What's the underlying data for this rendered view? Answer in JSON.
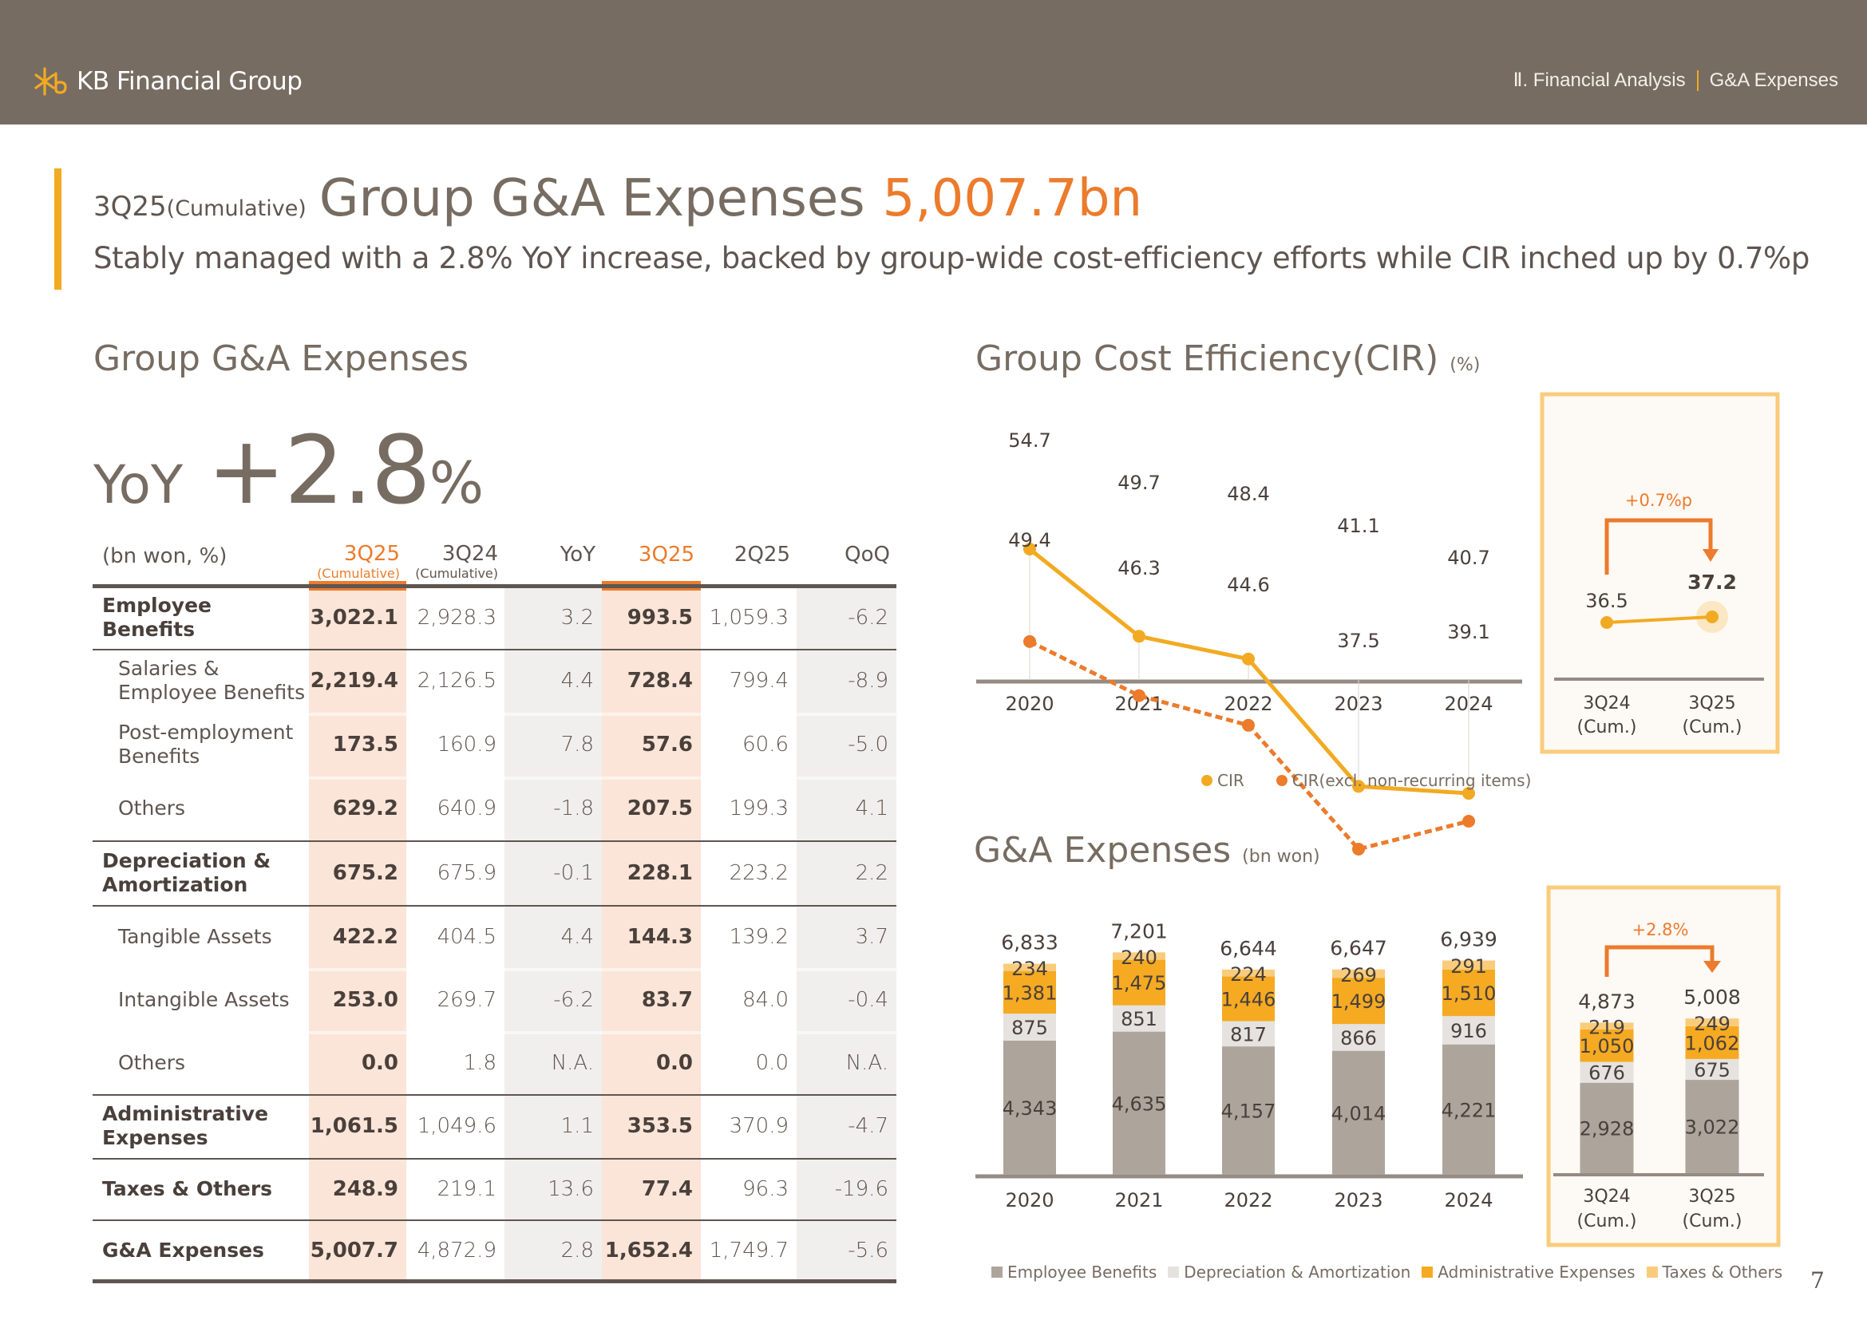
{
  "header": {
    "brand": "KB Financial Group",
    "breadcrumb": [
      "Ⅱ. Financial Analysis",
      "G&A Expenses"
    ],
    "colors": {
      "bar": "#776c62",
      "accent": "#f2aa22",
      "orange": "#ec7b2c"
    }
  },
  "title": {
    "period": "3Q25",
    "period_note": "(Cumulative)",
    "main": "Group G&A Expenses",
    "value": "5,007.7bn",
    "subtitle": "Stably managed with a 2.8% YoY increase, backed by group-wide cost-efficiency efforts while CIR inched up by 0.7%p"
  },
  "left": {
    "section_title": "Group G&A Expenses",
    "yoy_label": "YoY",
    "yoy_value": "+2.8",
    "yoy_unit": "%"
  },
  "table": {
    "unit": "(bn won, %)",
    "columns": [
      {
        "label": "3Q25",
        "note": "(Cumulative)",
        "highlight": true
      },
      {
        "label": "3Q24",
        "note": "(Cumulative)",
        "highlight": false
      },
      {
        "label": "YoY",
        "note": "",
        "highlight": false
      },
      {
        "label": "3Q25",
        "note": "",
        "highlight": true
      },
      {
        "label": "2Q25",
        "note": "",
        "highlight": false
      },
      {
        "label": "QoQ",
        "note": "",
        "highlight": false
      }
    ],
    "rows": [
      {
        "label": "Employee Benefits",
        "level": "main",
        "values": [
          "3,022.1",
          "2,928.3",
          "3.2",
          "993.5",
          "1,059.3",
          "-6.2"
        ]
      },
      {
        "label": "Salaries & Employee Benefits",
        "level": "sub",
        "values": [
          "2,219.4",
          "2,126.5",
          "4.4",
          "728.4",
          "799.4",
          "-8.9"
        ]
      },
      {
        "label": "Post-employment Benefits",
        "level": "sub",
        "values": [
          "173.5",
          "160.9",
          "7.8",
          "57.6",
          "60.6",
          "-5.0"
        ]
      },
      {
        "label": "Others",
        "level": "sub",
        "values": [
          "629.2",
          "640.9",
          "-1.8",
          "207.5",
          "199.3",
          "4.1"
        ]
      },
      {
        "label": "Depreciation & Amortization",
        "level": "main",
        "values": [
          "675.2",
          "675.9",
          "-0.1",
          "228.1",
          "223.2",
          "2.2"
        ]
      },
      {
        "label": "Tangible Assets",
        "level": "sub",
        "values": [
          "422.2",
          "404.5",
          "4.4",
          "144.3",
          "139.2",
          "3.7"
        ]
      },
      {
        "label": "Intangible Assets",
        "level": "sub",
        "values": [
          "253.0",
          "269.7",
          "-6.2",
          "83.7",
          "84.0",
          "-0.4"
        ]
      },
      {
        "label": "Others",
        "level": "sub",
        "values": [
          "0.0",
          "1.8",
          "N.A.",
          "0.0",
          "0.0",
          "N.A."
        ]
      },
      {
        "label": "Administrative Expenses",
        "level": "main",
        "values": [
          "1,061.5",
          "1,049.6",
          "1.1",
          "353.5",
          "370.9",
          "-4.7"
        ]
      },
      {
        "label": "Taxes & Others",
        "level": "main",
        "values": [
          "248.9",
          "219.1",
          "13.6",
          "77.4",
          "96.3",
          "-19.6"
        ]
      },
      {
        "label": "G&A Expenses",
        "level": "main",
        "values": [
          "5,007.7",
          "4,872.9",
          "2.8",
          "1,652.4",
          "1,749.7",
          "-5.6"
        ]
      }
    ]
  },
  "cir_section": {
    "title": "Group Cost Efficiency(CIR)",
    "unit": "(%)"
  },
  "ga_section": {
    "title": "G&A Expenses",
    "unit": "(bn won)"
  },
  "page_number": "7",
  "chart_data": [
    {
      "type": "line",
      "title": "Group Cost Efficiency(CIR)",
      "ylabel": "%",
      "categories": [
        "2020",
        "2021",
        "2022",
        "2023",
        "2024"
      ],
      "series": [
        {
          "name": "CIR",
          "color": "#f2aa22",
          "style": "solid",
          "values": [
            54.7,
            49.7,
            48.4,
            41.1,
            40.7
          ]
        },
        {
          "name": "CIR(excl. non-recurring items)",
          "color": "#ec7b2c",
          "style": "dashed",
          "values": [
            49.4,
            46.3,
            44.6,
            37.5,
            39.1
          ]
        }
      ],
      "legend": "bottom",
      "grid": false
    },
    {
      "type": "line",
      "title": "CIR cumulative comparison",
      "categories": [
        "3Q24\n(Cum.)",
        "3Q25\n(Cum.)"
      ],
      "category_lines": [
        [
          "3Q24",
          "(Cum.)"
        ],
        [
          "3Q25",
          "(Cum.)"
        ]
      ],
      "series": [
        {
          "name": "CIR",
          "color": "#f2aa22",
          "values": [
            36.5,
            37.2
          ]
        }
      ],
      "annotation": "+0.7%p"
    },
    {
      "type": "bar",
      "stacked": true,
      "title": "G&A Expenses",
      "ylabel": "bn won",
      "categories": [
        "2020",
        "2021",
        "2022",
        "2023",
        "2024"
      ],
      "series": [
        {
          "name": "Employee Benefits",
          "color": "#ada59c",
          "values": [
            4343,
            4635,
            4157,
            4014,
            4221
          ]
        },
        {
          "name": "Depreciation & Amortization",
          "color": "#e6e2df",
          "values": [
            875,
            851,
            817,
            866,
            916
          ]
        },
        {
          "name": "Administrative Expenses",
          "color": "#f5aa22",
          "values": [
            1381,
            1475,
            1446,
            1499,
            1510
          ]
        },
        {
          "name": "Taxes & Others",
          "color": "#f9cc7c",
          "values": [
            234,
            240,
            224,
            269,
            291
          ]
        }
      ],
      "totals": [
        "6,833",
        "7,201",
        "6,644",
        "6,647",
        "6,939"
      ],
      "labels": [
        [
          "4,343",
          "875",
          "1,381",
          "234"
        ],
        [
          "4,635",
          "851",
          "1,475",
          "240"
        ],
        [
          "4,157",
          "817",
          "1,446",
          "224"
        ],
        [
          "4,014",
          "866",
          "1,499",
          "269"
        ],
        [
          "4,221",
          "916",
          "1,510",
          "291"
        ]
      ],
      "legend": "bottom"
    },
    {
      "type": "bar",
      "stacked": true,
      "title": "G&A Expenses cumulative comparison",
      "categories": [
        "3Q24\n(Cum.)",
        "3Q25\n(Cum.)"
      ],
      "category_lines": [
        [
          "3Q24",
          "(Cum.)"
        ],
        [
          "3Q25",
          "(Cum.)"
        ]
      ],
      "series": [
        {
          "name": "Employee Benefits",
          "values": [
            2928,
            3022
          ]
        },
        {
          "name": "Depreciation & Amortization",
          "values": [
            676,
            675
          ]
        },
        {
          "name": "Administrative Expenses",
          "values": [
            1050,
            1062
          ]
        },
        {
          "name": "Taxes & Others",
          "values": [
            219,
            249
          ]
        }
      ],
      "totals": [
        "4,873",
        "5,008"
      ],
      "labels": [
        [
          "2,928",
          "676",
          "1,050",
          "219"
        ],
        [
          "3,022",
          "675",
          "1,062",
          "249"
        ]
      ],
      "annotation": "+2.8%"
    }
  ]
}
